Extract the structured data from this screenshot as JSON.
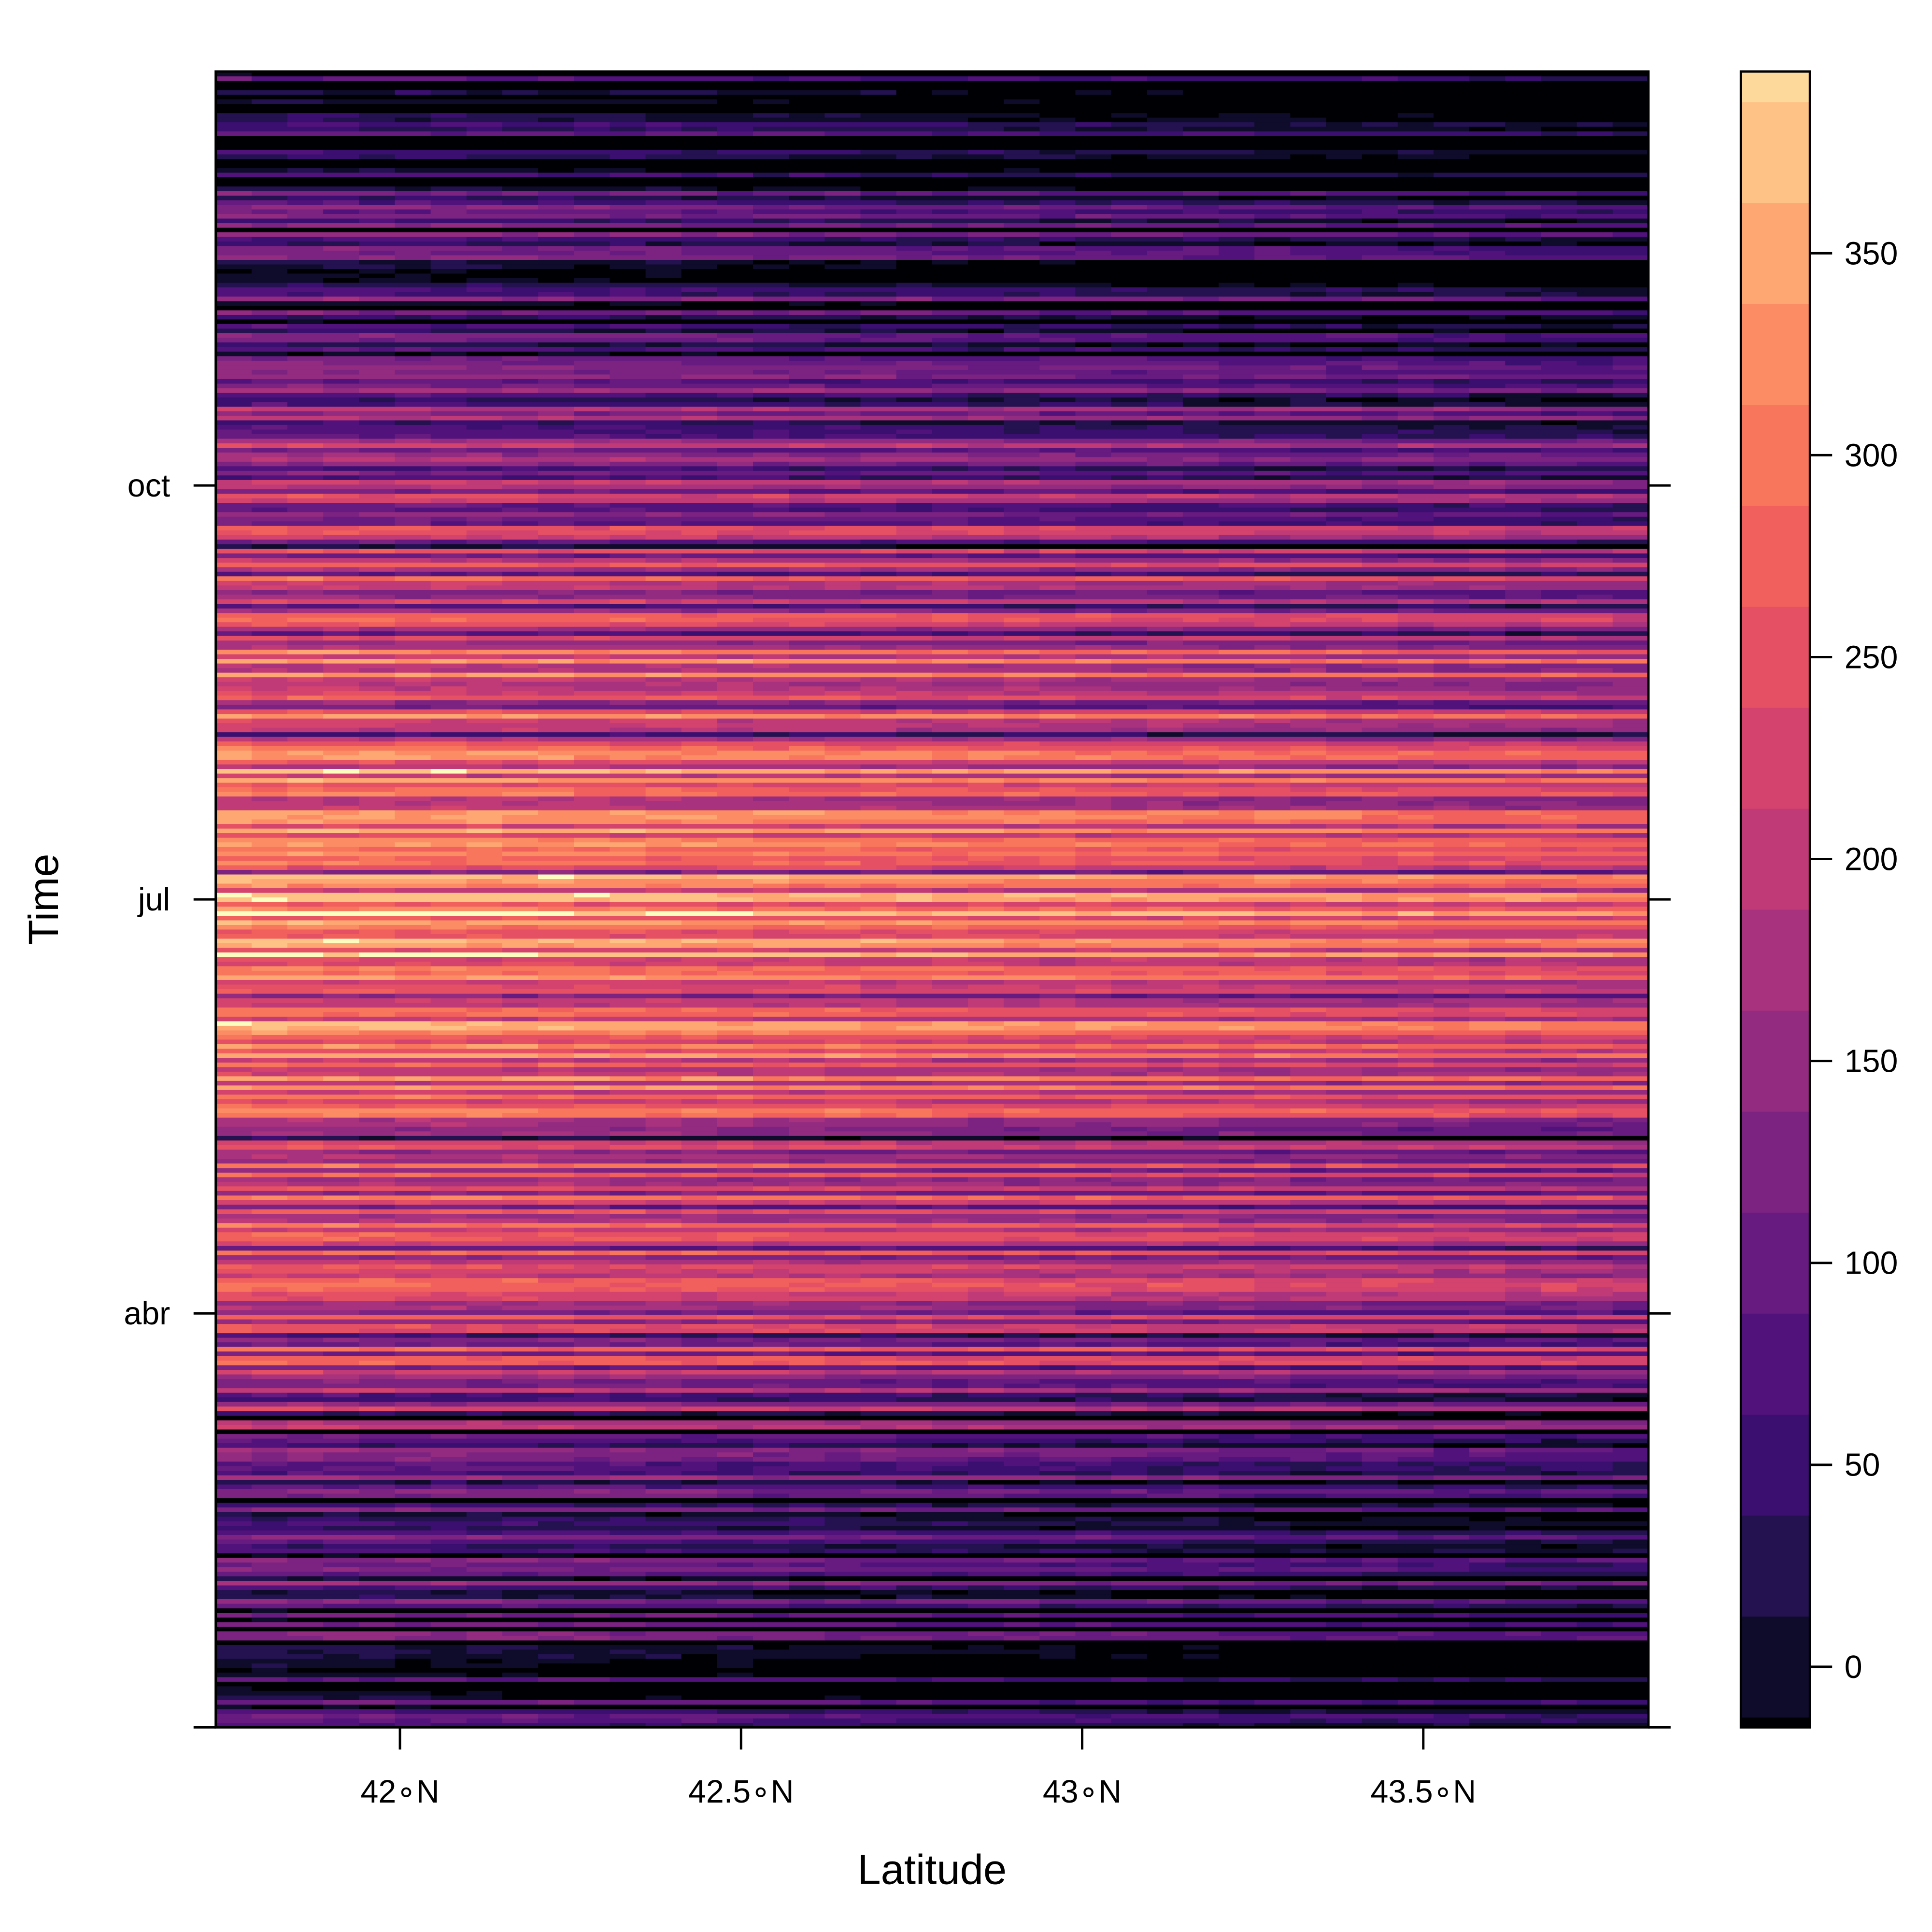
{
  "chart_data": {
    "type": "heatmap",
    "title": "",
    "xlabel": "Latitude",
    "ylabel": "Time",
    "x_ticks": [
      {
        "value": 42.0,
        "label": "42∘N"
      },
      {
        "value": 42.5,
        "label": "42.5∘N"
      },
      {
        "value": 43.0,
        "label": "43∘N"
      },
      {
        "value": 43.5,
        "label": "43.5∘N"
      }
    ],
    "xlim": [
      41.73,
      43.83
    ],
    "y_ticks": [
      {
        "value": 1,
        "label": ""
      },
      {
        "value": 91,
        "label": "abr"
      },
      {
        "value": 181,
        "label": "jul"
      },
      {
        "value": 271,
        "label": "oct"
      }
    ],
    "ylim": [
      1,
      361
    ],
    "grid": false,
    "legend": "right",
    "colorbar": {
      "levels": [
        -25,
        0,
        25,
        50,
        75,
        100,
        125,
        150,
        175,
        200,
        225,
        250,
        275,
        300,
        325,
        350,
        375,
        400
      ],
      "tick_values": [
        0,
        50,
        100,
        150,
        200,
        250,
        300,
        350
      ],
      "tick_labels": [
        "0",
        "50",
        "100",
        "150",
        "200",
        "250",
        "300",
        "350"
      ],
      "visible_range": [
        -15,
        395
      ],
      "colors": [
        "#000004",
        "#0f0b2b",
        "#231150",
        "#3b0f70",
        "#51127c",
        "#671b80",
        "#7c2382",
        "#932b80",
        "#a8327d",
        "#bf3a77",
        "#d3436e",
        "#e55064",
        "#f1605d",
        "#f8765c",
        "#fb8c64",
        "#fea772",
        "#fec287",
        "#fdda9c",
        "#fcfdbf"
      ]
    },
    "seasonal_profile": {
      "description_days": [
        1,
        20,
        40,
        60,
        80,
        100,
        120,
        140,
        160,
        180,
        200,
        220,
        240,
        260,
        280,
        300,
        320,
        340,
        361
      ],
      "mean_value": [
        45,
        80,
        90,
        105,
        215,
        240,
        250,
        280,
        330,
        335,
        300,
        300,
        260,
        195,
        155,
        85,
        75,
        65,
        60
      ]
    }
  }
}
